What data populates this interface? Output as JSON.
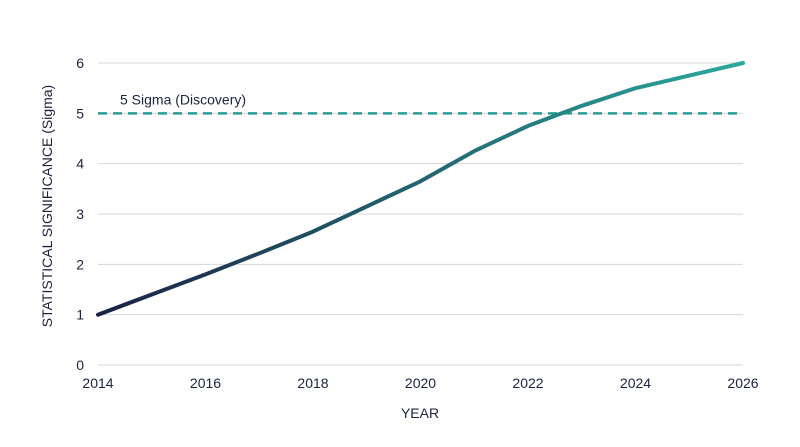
{
  "chart_data": {
    "type": "line",
    "title": "",
    "xlabel": "YEAR",
    "ylabel": "STATISTICAL SIGNIFICANCE (Sigma)",
    "xlim": [
      2014,
      2026
    ],
    "ylim": [
      0,
      6
    ],
    "x_ticks": [
      2014,
      2016,
      2018,
      2020,
      2022,
      2024,
      2026
    ],
    "y_ticks": [
      0,
      1,
      2,
      3,
      4,
      5,
      6
    ],
    "grid": "horizontal",
    "series": [
      {
        "x": [
          2014,
          2015,
          2016,
          2017,
          2018,
          2019,
          2020,
          2021,
          2022,
          2023,
          2024,
          2025,
          2026
        ],
        "values": [
          1.0,
          1.4,
          1.8,
          2.22,
          2.65,
          3.15,
          3.65,
          4.25,
          4.75,
          5.15,
          5.5,
          5.75,
          6.0
        ],
        "color_start": "#1b2145",
        "color_end": "#2aa99c"
      }
    ],
    "annotations": [
      {
        "type": "hline",
        "y": 5,
        "label": "5 Sigma (Discovery)",
        "style": "dashed",
        "color": "#2a9d93"
      }
    ]
  }
}
